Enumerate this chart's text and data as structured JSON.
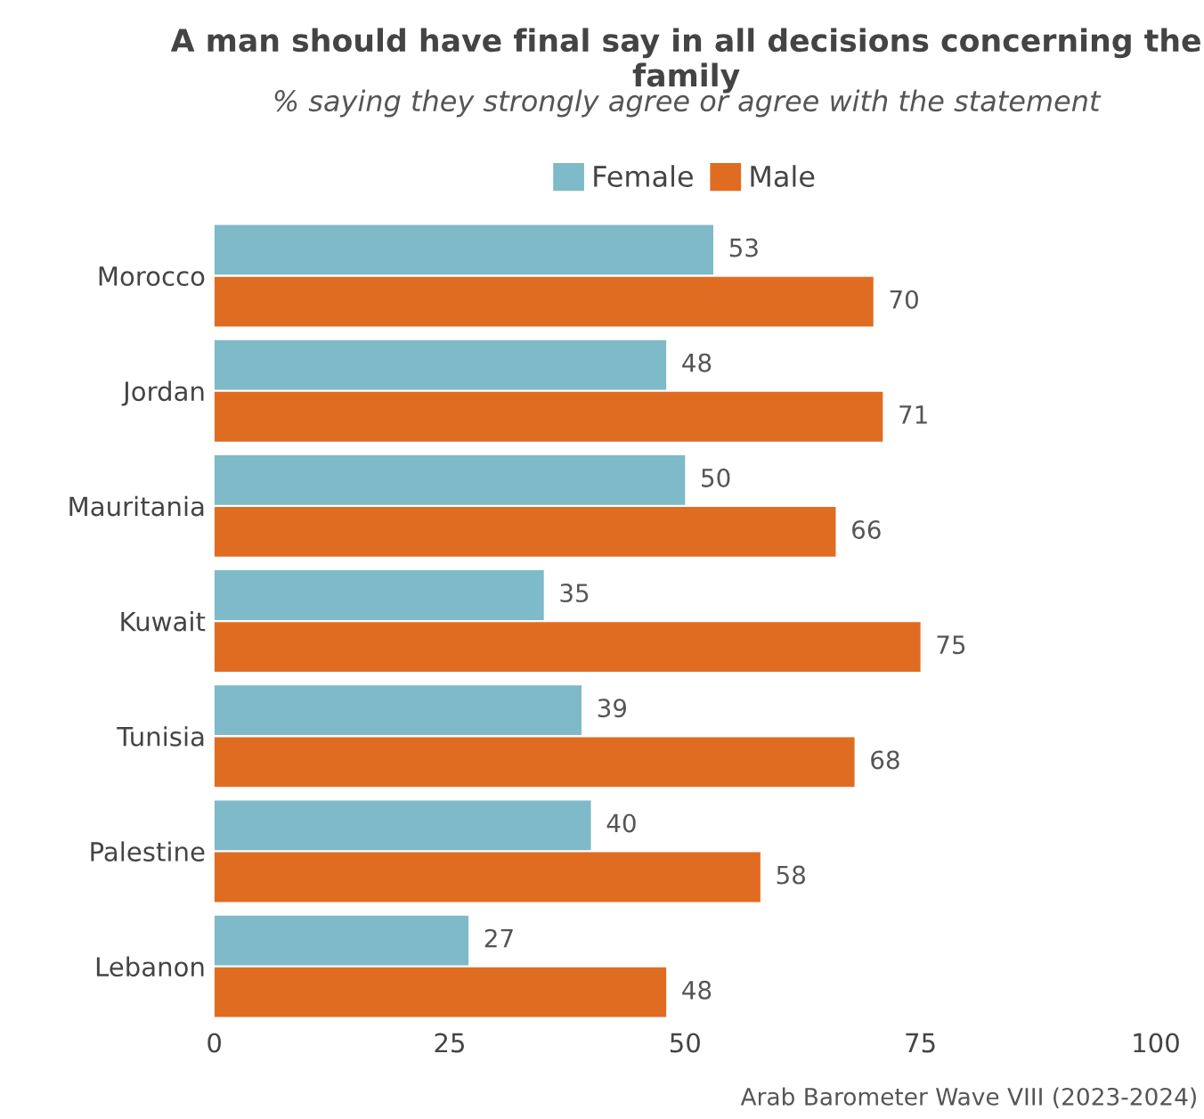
{
  "chart_data": {
    "type": "bar",
    "orientation": "horizontal",
    "title": "A man should have final say in all decisions concerning the family",
    "subtitle": "% saying they strongly agree or agree with the statement",
    "categories": [
      "Morocco",
      "Jordan",
      "Mauritania",
      "Kuwait",
      "Tunisia",
      "Palestine",
      "Lebanon"
    ],
    "series": [
      {
        "name": "Female",
        "color": "#7fbac8",
        "values": [
          53,
          48,
          50,
          35,
          39,
          40,
          27
        ]
      },
      {
        "name": "Male",
        "color": "#e06c22",
        "values": [
          70,
          71,
          66,
          75,
          68,
          58,
          48
        ]
      }
    ],
    "xlim": [
      0,
      100
    ],
    "xticks": [
      0,
      25,
      50,
      75,
      100
    ],
    "grid": false,
    "legend": "top",
    "data_labels": true,
    "annotations": [
      "Arab Barometer Wave VIII (2023-2024)"
    ]
  }
}
